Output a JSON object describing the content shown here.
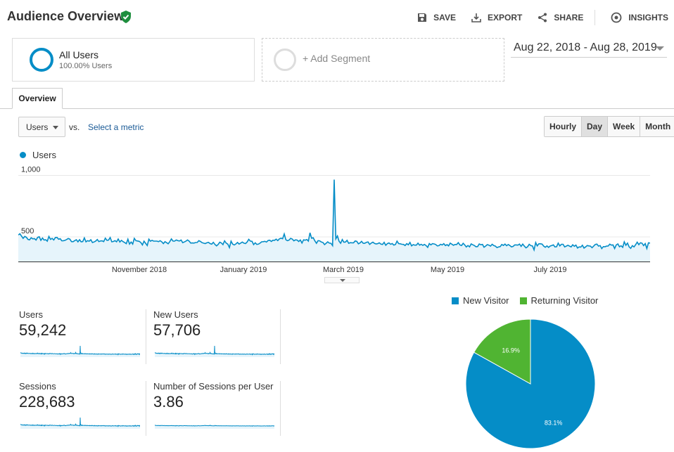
{
  "header": {
    "title": "Audience Overview",
    "actions": {
      "save": "SAVE",
      "export": "EXPORT",
      "share": "SHARE",
      "insights": "INSIGHTS"
    }
  },
  "segments": {
    "active": {
      "name": "All Users",
      "percent": "100.00% Users"
    },
    "add_label": "+ Add Segment"
  },
  "date_range": "Aug 22, 2018 - Aug 28, 2019",
  "tabs": [
    "Overview"
  ],
  "controls": {
    "metric": "Users",
    "vs": "vs.",
    "select_metric": "Select a metric",
    "granularity": [
      "Hourly",
      "Day",
      "Week",
      "Month"
    ],
    "active_granularity": "Day"
  },
  "colors": {
    "primary": "#058dc7",
    "secondary": "#50b432",
    "fill": "#e6f4fb"
  },
  "chart_data": {
    "type": "line",
    "series": [
      {
        "name": "Users",
        "values": [
          516,
          526,
          506,
          488,
          504,
          497,
          480,
          476,
          493,
          484,
          486,
          474,
          496,
          501,
          472,
          491,
          474,
          477,
          465,
          504,
          480,
          488,
          475,
          495,
          496,
          481,
          485,
          468,
          469,
          472,
          479,
          487,
          482,
          462,
          461,
          470,
          477,
          460,
          477,
          460,
          462,
          492,
          460,
          469,
          465,
          477,
          454,
          459,
          466,
          479,
          462,
          467,
          468,
          462,
          490,
          472,
          474,
          495,
          460,
          463,
          470,
          460,
          483,
          458,
          472,
          462,
          454,
          445,
          482,
          442,
          458,
          442,
          488,
          469,
          467,
          464,
          455,
          435,
          465,
          448,
          430,
          482,
          465,
          472,
          466,
          466,
          466,
          461,
          469,
          460,
          446,
          461,
          453,
          444,
          461,
          484,
          466,
          466,
          475,
          470,
          467,
          474,
          453,
          459,
          465,
          475,
          466,
          450,
          451,
          450,
          454,
          455,
          469,
          463,
          453,
          449,
          446,
          452,
          456,
          446,
          441,
          456,
          439,
          427,
          439,
          457,
          451,
          437,
          468,
          450,
          441,
          413,
          465,
          441,
          434,
          443,
          455,
          442,
          450,
          458,
          449,
          446,
          459,
          480,
          466,
          464,
          437,
          452,
          439,
          441,
          449,
          460,
          461,
          464,
          458,
          471,
          473,
          463,
          473,
          472,
          482,
          470,
          484,
          489,
          485,
          524,
          477,
          469,
          474,
          488,
          483,
          468,
          476,
          474,
          463,
          475,
          450,
          476,
          473,
          479,
          466,
          534,
          489,
          493,
          468,
          448,
          470,
          468,
          458,
          455,
          437,
          448,
          460,
          449,
          448,
          429,
          966,
          484,
          508,
          465,
          448,
          478,
          457,
          458,
          472,
          448,
          453,
          452,
          452,
          467,
          464,
          444,
          451,
          464,
          448,
          448,
          456,
          459,
          439,
          450,
          457,
          447,
          443,
          445,
          452,
          441,
          439,
          456,
          432,
          445,
          451,
          440,
          446,
          433,
          438,
          466,
          446,
          444,
          440,
          439,
          430,
          445,
          436,
          455,
          427,
          437,
          433,
          433,
          449,
          433,
          440,
          431,
          439,
          430,
          415,
          446,
          435,
          445,
          443,
          438,
          427,
          429,
          440,
          434,
          445,
          430,
          437,
          427,
          449,
          441,
          432,
          438,
          438,
          453,
          434,
          430,
          448,
          434,
          418,
          430,
          419,
          443,
          436,
          430,
          420,
          422,
          443,
          436,
          439,
          416,
          426,
          437,
          433,
          425,
          440,
          430,
          425,
          413,
          418,
          421,
          438,
          431,
          442,
          428,
          438,
          430,
          419,
          423,
          435,
          435,
          433,
          442,
          423,
          442,
          425,
          411,
          420,
          440,
          429,
          427,
          394,
          454,
          427,
          444,
          444,
          442,
          425,
          416,
          427,
          415,
          426,
          430,
          435,
          418,
          420,
          449,
          427,
          440,
          440,
          419,
          425,
          432,
          425,
          419,
          436,
          424,
          433,
          410,
          419,
          417,
          432,
          409,
          419,
          430,
          427,
          425,
          412,
          425,
          439,
          441,
          425,
          430,
          405,
          421,
          420,
          425,
          426,
          441,
          433,
          435,
          406,
          435,
          443,
          420,
          428,
          415,
          460,
          432,
          450,
          419,
          407,
          429,
          419,
          436,
          457,
          437,
          452,
          449,
          429,
          446,
          406,
          452,
          450
        ]
      }
    ],
    "x_ticks": [
      "November 2018",
      "January 2019",
      "March 2019",
      "May 2019",
      "July 2019"
    ],
    "y_ticks": [
      "500",
      "1,000"
    ],
    "ylim": [
      300,
      1100
    ]
  },
  "scorecards": [
    {
      "label": "Users",
      "value": "59,242"
    },
    {
      "label": "New Users",
      "value": "57,706"
    },
    {
      "label": "Sessions",
      "value": "228,683"
    },
    {
      "label": "Number of Sessions per User",
      "value": "3.86"
    }
  ],
  "pie": {
    "legend": [
      "New Visitor",
      "Returning Visitor"
    ],
    "slices": [
      {
        "name": "New Visitor",
        "value": 83.1,
        "label": "83.1%"
      },
      {
        "name": "Returning Visitor",
        "value": 16.9,
        "label": "16.9%"
      }
    ]
  }
}
